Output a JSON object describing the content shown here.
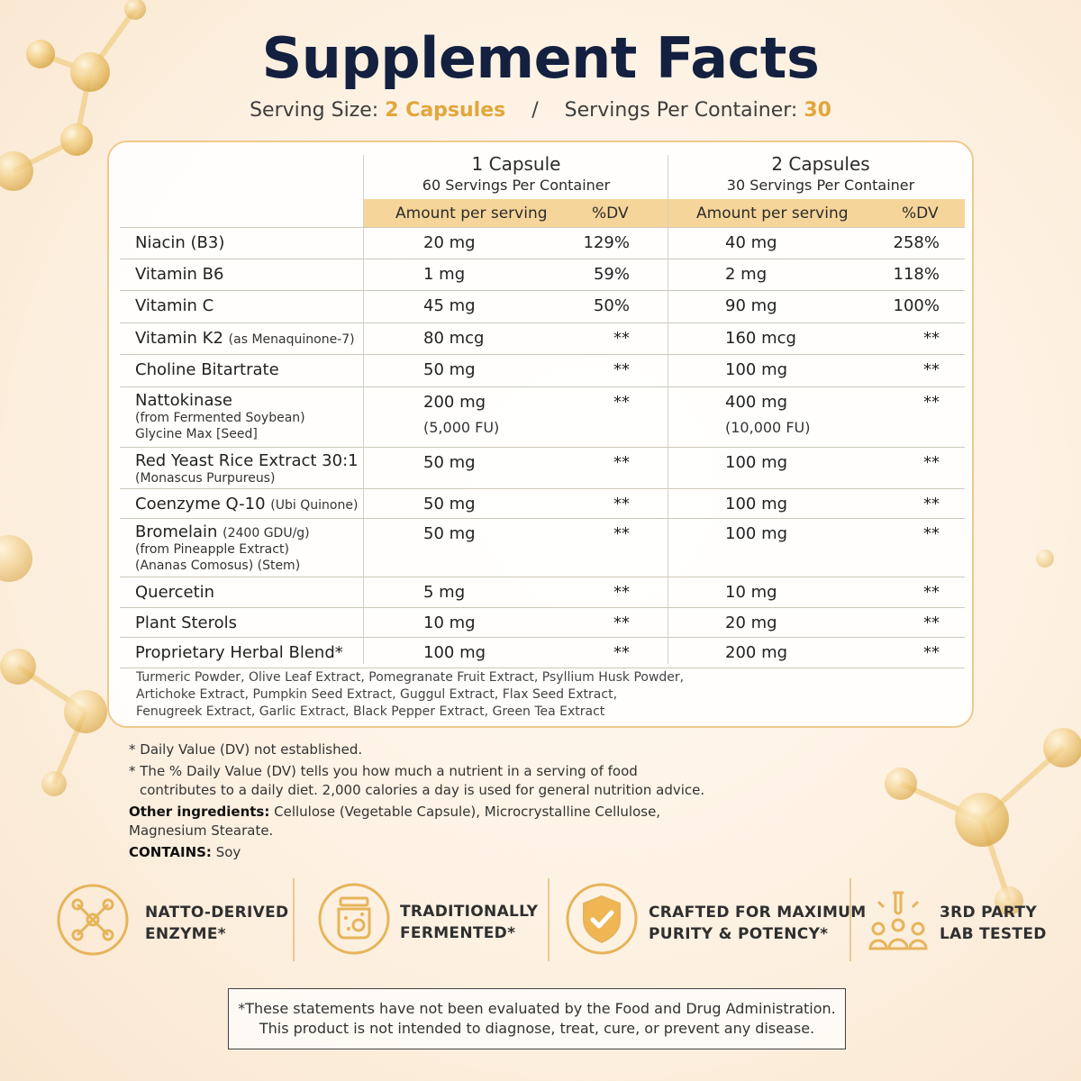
{
  "title": "Supplement Facts",
  "serving": {
    "size_label": "Serving Size:",
    "size_value": "2 Capsules",
    "separator": "/",
    "per_container_label": "Servings Per Container:",
    "per_container_value": "30"
  },
  "columns": [
    {
      "title": "1 Capsule",
      "subtitle_count": "60",
      "subtitle_text": "Servings Per Container"
    },
    {
      "title": "2 Capsules",
      "subtitle_count": "30",
      "subtitle_text": "Servings Per Container"
    }
  ],
  "band": {
    "amount_label": "Amount per serving",
    "dv_label": "%DV"
  },
  "rows": [
    {
      "name": "Niacin (B3)",
      "note": "",
      "sub": [],
      "amt1": "20 mg",
      "dv1": "129%",
      "amt2": "40 mg",
      "dv2": "258%"
    },
    {
      "name": "Vitamin B6",
      "note": "",
      "sub": [],
      "amt1": "1 mg",
      "dv1": "59%",
      "amt2": "2 mg",
      "dv2": "118%"
    },
    {
      "name": "Vitamin C",
      "note": "",
      "sub": [],
      "amt1": "45 mg",
      "dv1": "50%",
      "amt2": "90 mg",
      "dv2": "100%"
    },
    {
      "name": "Vitamin K2",
      "note": "(as Menaquinone-7)",
      "sub": [],
      "amt1": "80 mcg",
      "dv1": "**",
      "amt2": "160 mcg",
      "dv2": "**"
    },
    {
      "name": "Choline Bitartrate",
      "note": "",
      "sub": [],
      "amt1": "50 mg",
      "dv1": "**",
      "amt2": "100 mg",
      "dv2": "**"
    },
    {
      "name": "Nattokinase",
      "note": "",
      "sub": [
        "(from Fermented Soybean)",
        "Glycine Max [Seed]"
      ],
      "amt1": "200 mg",
      "fu1": "(5,000 FU)",
      "dv1": "**",
      "amt2": "400 mg",
      "fu2": "(10,000 FU)",
      "dv2": "**"
    },
    {
      "name": "Red Yeast Rice Extract 30:1",
      "note": "",
      "sub": [
        "(Monascus Purpureus)"
      ],
      "amt1": "50 mg",
      "dv1": "**",
      "amt2": "100 mg",
      "dv2": "**"
    },
    {
      "name": "Coenzyme Q-10",
      "note": "(Ubi Quinone)",
      "sub": [],
      "amt1": "50 mg",
      "dv1": "**",
      "amt2": "100 mg",
      "dv2": "**"
    },
    {
      "name": "Bromelain",
      "note": "(2400 GDU/g)",
      "sub": [
        "(from Pineapple Extract)",
        "(Ananas Comosus) (Stem)"
      ],
      "amt1": "50 mg",
      "dv1": "**",
      "amt2": "100 mg",
      "dv2": "**"
    },
    {
      "name": "Quercetin",
      "note": "",
      "sub": [],
      "amt1": "5 mg",
      "dv1": "**",
      "amt2": "10 mg",
      "dv2": "**"
    },
    {
      "name": "Plant Sterols",
      "note": "",
      "sub": [],
      "amt1": "10 mg",
      "dv1": "**",
      "amt2": "20 mg",
      "dv2": "**"
    },
    {
      "name": "Proprietary Herbal Blend*",
      "note": "",
      "sub": [],
      "amt1": "100 mg",
      "dv1": "**",
      "amt2": "200 mg",
      "dv2": "**"
    }
  ],
  "blend_ingredients": [
    "Turmeric Powder, Olive Leaf Extract, Pomegranate Fruit Extract, Psyllium Husk Powder,",
    "Artichoke Extract, Pumpkin Seed Extract, Guggul Extract, Flax Seed Extract,",
    "Fenugreek Extract, Garlic Extract, Black Pepper Extract, Green Tea Extract"
  ],
  "footnotes": {
    "dv_not_established": "* Daily Value (DV) not established.",
    "dv_explain_1": "* The % Daily Value (DV) tells you how much a nutrient in a serving of food",
    "dv_explain_2": "contributes to a daily diet. 2,000 calories a day is used for general nutrition advice.",
    "other_label": "Other ingredients:",
    "other_value_1": " Cellulose (Vegetable Capsule), Microcrystalline Cellulose,",
    "other_value_2": "Magnesium Stearate.",
    "contains_label": "CONTAINS:",
    "contains_value": " Soy"
  },
  "badges": [
    {
      "line1": "NATTO-DERIVED",
      "line2": "ENZYME*",
      "icon": "molecule-icon"
    },
    {
      "line1": "TRADITIONALLY",
      "line2": "FERMENTED*",
      "icon": "fermentation-jar-icon"
    },
    {
      "line1": "CRAFTED FOR MAXIMUM",
      "line2": "PURITY & POTENCY*",
      "icon": "shield-check-icon"
    },
    {
      "line1": "3RD PARTY",
      "line2": "LAB TESTED",
      "icon": "lab-people-icon"
    }
  ],
  "disclaimer": {
    "line1": "*These statements have not been evaluated by the Food and Drug Administration.",
    "line2": "This product is not intended to diagnose, treat, cure, or prevent any disease."
  },
  "colors": {
    "title": "#13203f",
    "accent_gold": "#e2a63c",
    "band": "#f6d59a",
    "card_border": "#eec98c"
  }
}
